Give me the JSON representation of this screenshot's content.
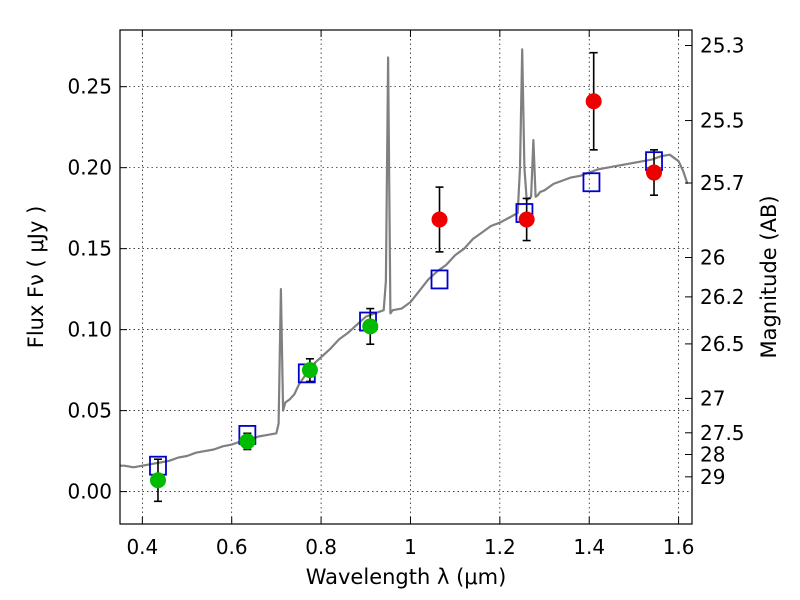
{
  "chart_data": {
    "type": "scatter",
    "xlabel": "Wavelength  λ (μm)",
    "ylabel": "Flux  Fν  ( μJy )",
    "y2label": "Magnitude (AB)",
    "xlim": [
      0.35,
      1.63
    ],
    "ylim": [
      -0.02,
      0.285
    ],
    "grid": true,
    "x_ticks": [
      0.4,
      0.6,
      0.8,
      1.0,
      1.2,
      1.4,
      1.6
    ],
    "x_tick_labels": [
      "0.4",
      "0.6",
      "0.8",
      "1",
      "1.2",
      "1.4",
      "1.6"
    ],
    "y_ticks": [
      0.0,
      0.05,
      0.1,
      0.15,
      0.2,
      0.25
    ],
    "y_tick_labels": [
      "0.00",
      "0.05",
      "0.10",
      "0.15",
      "0.20",
      "0.25"
    ],
    "magnitude_ticks": [
      "25.3",
      "25.5",
      "25.7",
      "26",
      "26.2",
      "26.5",
      "27",
      "27.5",
      "28",
      "29"
    ],
    "magnitude_tick_values": [
      25.3,
      25.5,
      25.7,
      26,
      26.2,
      26.5,
      27,
      27.5,
      28,
      29
    ],
    "series": [
      {
        "kind": "spectrum",
        "color": "#808080",
        "x": [
          0.35,
          0.36,
          0.38,
          0.4,
          0.42,
          0.44,
          0.46,
          0.48,
          0.5,
          0.52,
          0.54,
          0.56,
          0.58,
          0.6,
          0.62,
          0.64,
          0.66,
          0.68,
          0.7,
          0.705,
          0.71,
          0.715,
          0.72,
          0.73,
          0.74,
          0.75,
          0.76,
          0.78,
          0.8,
          0.82,
          0.84,
          0.86,
          0.88,
          0.9,
          0.92,
          0.94,
          0.945,
          0.95,
          0.955,
          0.96,
          0.98,
          1.0,
          1.02,
          1.04,
          1.06,
          1.08,
          1.1,
          1.12,
          1.14,
          1.16,
          1.18,
          1.2,
          1.22,
          1.24,
          1.245,
          1.25,
          1.255,
          1.26,
          1.265,
          1.27,
          1.275,
          1.28,
          1.285,
          1.29,
          1.3,
          1.32,
          1.34,
          1.36,
          1.38,
          1.4,
          1.42,
          1.44,
          1.46,
          1.48,
          1.5,
          1.52,
          1.54,
          1.56,
          1.58,
          1.6,
          1.61,
          1.62
        ],
        "y": [
          0.016,
          0.016,
          0.015,
          0.016,
          0.017,
          0.018,
          0.019,
          0.021,
          0.022,
          0.024,
          0.025,
          0.026,
          0.028,
          0.029,
          0.031,
          0.032,
          0.034,
          0.035,
          0.036,
          0.042,
          0.125,
          0.05,
          0.055,
          0.057,
          0.06,
          0.066,
          0.07,
          0.078,
          0.083,
          0.088,
          0.094,
          0.098,
          0.103,
          0.108,
          0.11,
          0.112,
          0.13,
          0.268,
          0.11,
          0.112,
          0.113,
          0.117,
          0.124,
          0.131,
          0.136,
          0.14,
          0.146,
          0.15,
          0.156,
          0.16,
          0.164,
          0.166,
          0.169,
          0.172,
          0.2,
          0.273,
          0.2,
          0.18,
          0.181,
          0.182,
          0.217,
          0.182,
          0.183,
          0.185,
          0.186,
          0.19,
          0.192,
          0.194,
          0.195,
          0.197,
          0.199,
          0.2,
          0.201,
          0.202,
          0.203,
          0.204,
          0.205,
          0.207,
          0.208,
          0.204,
          0.198,
          0.19
        ]
      },
      {
        "kind": "model-photometry",
        "marker": "open-square",
        "color": "#0000cc",
        "x": [
          0.435,
          0.635,
          0.768,
          0.905,
          1.065,
          1.255,
          1.405,
          1.545
        ],
        "y": [
          0.016,
          0.035,
          0.073,
          0.105,
          0.131,
          0.172,
          0.191,
          0.204
        ]
      },
      {
        "kind": "observed-photometry",
        "marker": "filled-circle",
        "color": "#00bb00",
        "x": [
          0.435,
          0.635,
          0.775,
          0.91
        ],
        "y": [
          0.007,
          0.031,
          0.075,
          0.102
        ],
        "err": [
          0.013,
          0.005,
          0.007,
          0.011
        ]
      },
      {
        "kind": "observed-photometry",
        "marker": "filled-circle",
        "color": "#ee0000",
        "x": [
          1.065,
          1.26,
          1.41,
          1.545
        ],
        "y": [
          0.168,
          0.168,
          0.241,
          0.197
        ],
        "err": [
          0.02,
          0.013,
          0.03,
          0.014
        ]
      }
    ]
  }
}
